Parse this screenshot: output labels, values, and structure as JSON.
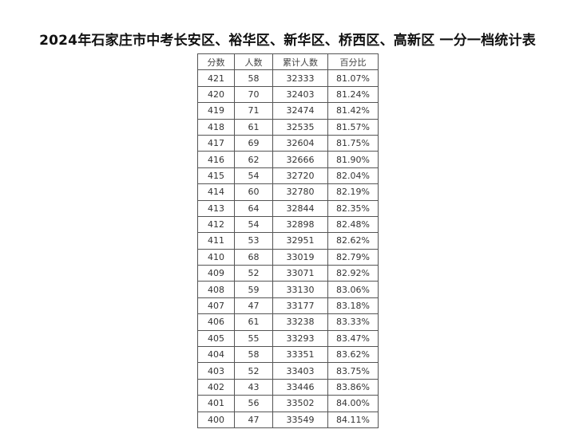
{
  "title": "2024年石家庄市中考长安区、裕华区、新华区、桥西区、高新区 一分一档统计表",
  "table": {
    "headers": [
      "分数",
      "人数",
      "累计人数",
      "百分比"
    ],
    "rows": [
      [
        "421",
        "58",
        "32333",
        "81.07%"
      ],
      [
        "420",
        "70",
        "32403",
        "81.24%"
      ],
      [
        "419",
        "71",
        "32474",
        "81.42%"
      ],
      [
        "418",
        "61",
        "32535",
        "81.57%"
      ],
      [
        "417",
        "69",
        "32604",
        "81.75%"
      ],
      [
        "416",
        "62",
        "32666",
        "81.90%"
      ],
      [
        "415",
        "54",
        "32720",
        "82.04%"
      ],
      [
        "414",
        "60",
        "32780",
        "82.19%"
      ],
      [
        "413",
        "64",
        "32844",
        "82.35%"
      ],
      [
        "412",
        "54",
        "32898",
        "82.48%"
      ],
      [
        "411",
        "53",
        "32951",
        "82.62%"
      ],
      [
        "410",
        "68",
        "33019",
        "82.79%"
      ],
      [
        "409",
        "52",
        "33071",
        "82.92%"
      ],
      [
        "408",
        "59",
        "33130",
        "83.06%"
      ],
      [
        "407",
        "47",
        "33177",
        "83.18%"
      ],
      [
        "406",
        "61",
        "33238",
        "83.33%"
      ],
      [
        "405",
        "55",
        "33293",
        "83.47%"
      ],
      [
        "404",
        "58",
        "33351",
        "83.62%"
      ],
      [
        "403",
        "52",
        "33403",
        "83.75%"
      ],
      [
        "402",
        "43",
        "33446",
        "83.86%"
      ],
      [
        "401",
        "56",
        "33502",
        "84.00%"
      ],
      [
        "400",
        "47",
        "33549",
        "84.11%"
      ]
    ]
  }
}
